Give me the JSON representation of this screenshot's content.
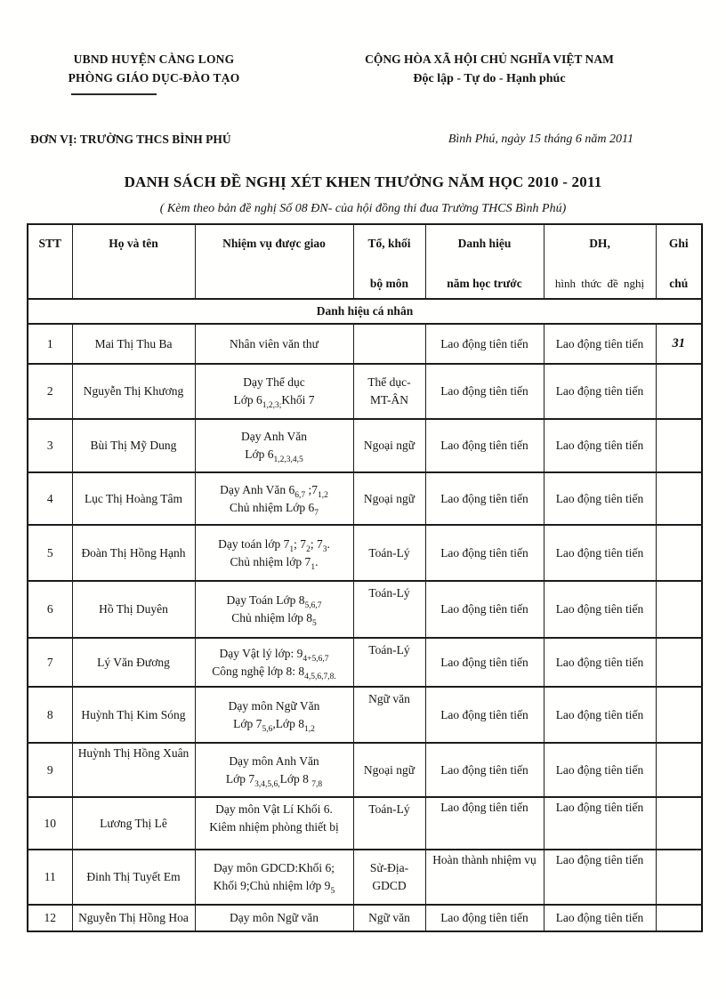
{
  "letterhead": {
    "org_line1": "UBND HUYỆN CÀNG LONG",
    "org_line2": "PHÒNG GIÁO DỤC-ĐÀO TẠO",
    "national_line1": "CỘNG HÒA XÃ HỘI CHỦ NGHĨA VIỆT NAM",
    "national_line2": "Độc lập - Tự do - Hạnh phúc",
    "unit_line": "ĐƠN VỊ: TRƯỜNG THCS BÌNH PHÚ",
    "date_line": "Bình Phú,  ngày  15 tháng  6  năm 2011"
  },
  "title": "DANH  SÁCH ĐỀ NGHỊ XÉT KHEN THƯỞNG NĂM HỌC 2010 - 2011",
  "subtitle": "( Kèm theo bản đề nghị Số  08 ĐN-  của hội đồng thi đua  Trường THCS Bình Phú)",
  "table": {
    "columns": [
      {
        "lines": [
          "STT"
        ]
      },
      {
        "lines": [
          "Họ và tên"
        ]
      },
      {
        "lines": [
          "Nhiệm vụ được giao"
        ]
      },
      {
        "lines": [
          "Tổ, khối",
          "bộ môn"
        ]
      },
      {
        "lines": [
          "Danh hiệu",
          "năm học trước"
        ]
      },
      {
        "lines": [
          "DH,",
          "hình thức  đề nghị"
        ]
      },
      {
        "lines": [
          "Ghi",
          "chú"
        ]
      }
    ],
    "section_row_label": "Danh hiệu cá nhân",
    "rows": [
      {
        "stt": "1",
        "name": "Mai Thị Thu Ba",
        "duty": [
          [
            {
              "t": "Nhân viên văn thư"
            }
          ]
        ],
        "group": [],
        "prev": "Lao động tiên tiến",
        "prop": "Lao động tiên tiến",
        "note": "31"
      },
      {
        "stt": "2",
        "name": "Nguyễn Thị Khương",
        "duty": [
          [
            {
              "t": "Dạy Thể dục"
            }
          ],
          [
            {
              "t": "Lớp 6"
            },
            {
              "t": "1,2,3;",
              "sub": true
            },
            {
              "t": "Khối 7"
            }
          ]
        ],
        "group": [
          "Thể dục-",
          "MT-ÂN"
        ],
        "prev": "Lao động tiên tiến",
        "prop": "Lao động tiên tiến",
        "note": ""
      },
      {
        "stt": "3",
        "name": "Bùi Thị Mỹ Dung",
        "duty": [
          [
            {
              "t": "Dạy Anh Văn"
            }
          ],
          [
            {
              "t": "Lớp 6"
            },
            {
              "t": "1,2,3,4,5",
              "sub": true
            }
          ]
        ],
        "group": [
          "Ngoại ngữ"
        ],
        "prev": "Lao động tiên tiến",
        "prop": "Lao động tiên tiến",
        "note": ""
      },
      {
        "stt": "4",
        "name": "Lục Thị Hoàng Tâm",
        "duty": [
          [
            {
              "t": "Dạy Anh Văn  6"
            },
            {
              "t": "6,7",
              "sub": true
            },
            {
              "t": " ;7"
            },
            {
              "t": "1,2",
              "sub": true
            }
          ],
          [
            {
              "t": "Chủ nhiệm Lớp 6"
            },
            {
              "t": "7",
              "sub": true
            }
          ]
        ],
        "group": [
          "Ngoại ngữ"
        ],
        "prev": "Lao động tiên tiến",
        "prop": "Lao động tiên tiến",
        "note": ""
      },
      {
        "stt": "5",
        "name": "Đoàn Thị Hồng Hạnh",
        "duty": [
          [
            {
              "t": "Dạy toán lớp 7"
            },
            {
              "t": "1",
              "sub": true
            },
            {
              "t": "; 7"
            },
            {
              "t": "2",
              "sub": true
            },
            {
              "t": "; 7"
            },
            {
              "t": "3",
              "sub": true
            },
            {
              "t": "."
            }
          ],
          [
            {
              "t": "Chủ nhiệm lớp 7"
            },
            {
              "t": "1",
              "sub": true
            },
            {
              "t": "."
            }
          ]
        ],
        "group": [
          "Toán-Lý"
        ],
        "prev": "Lao động tiên tiến",
        "prop": "Lao động tiên tiến",
        "note": ""
      },
      {
        "stt": "6",
        "name": "Hồ Thị Duyên",
        "duty": [
          [
            {
              "t": "Dạy Toán  Lớp 8"
            },
            {
              "t": "5,6,7",
              "sub": true
            }
          ],
          [
            {
              "t": "Chủ nhiệm lớp 8"
            },
            {
              "t": "5",
              "sub": true
            }
          ]
        ],
        "group": [
          "Toán-Lý"
        ],
        "prev": "Lao động tiên tiến",
        "prop": "Lao động tiên tiến",
        "note": ""
      },
      {
        "stt": "7",
        "name": "Lý Văn Đương",
        "duty": [
          [
            {
              "t": "Dạy Vật lý lớp: 9"
            },
            {
              "t": "4+5,6,7",
              "sub": true
            }
          ],
          [
            {
              "t": "Công nghệ lớp 8: 8"
            },
            {
              "t": "4,5,6,7,8.",
              "sub": true
            }
          ]
        ],
        "group": [
          "Toán-Lý"
        ],
        "prev": "Lao động tiên tiến",
        "prop": "Lao động tiên tiến",
        "note": ""
      },
      {
        "stt": "8",
        "name": "Huỳnh Thị Kim Sóng",
        "duty": [
          [
            {
              "t": "Dạy môn Ngữ Văn"
            }
          ],
          [
            {
              "t": "Lớp 7"
            },
            {
              "t": "5,6",
              "sub": true
            },
            {
              "t": ",Lớp 8"
            },
            {
              "t": "1,2",
              "sub": true
            }
          ]
        ],
        "group": [
          "Ngữ văn"
        ],
        "prev": "Lao động tiên tiến",
        "prop": "Lao động tiên tiến",
        "note": ""
      },
      {
        "stt": "9",
        "name": "Huỳnh Thị Hồng Xuân",
        "duty": [
          [
            {
              "t": "Dạy môn Anh Văn"
            }
          ],
          [
            {
              "t": "Lớp 7"
            },
            {
              "t": "3,4,5,6,",
              "sub": true
            },
            {
              "t": "Lớp 8 "
            },
            {
              "t": "7,8",
              "sub": true
            }
          ]
        ],
        "group": [
          "Ngoại ngữ"
        ],
        "prev": "Lao động tiên tiến",
        "prop": "Lao động tiên tiến",
        "note": ""
      },
      {
        "stt": "10",
        "name": "Lương Thị Lê",
        "duty": [
          [
            {
              "t": "Dạy môn Vật Lí Khối 6."
            }
          ],
          [
            {
              "t": "Kiêm nhiệm phòng thiết bị"
            }
          ]
        ],
        "group": [
          "Toán-Lý"
        ],
        "prev": "Lao động tiên tiến",
        "prop": "Lao động tiên tiến",
        "note": ""
      },
      {
        "stt": "11",
        "name": "Đinh Thị Tuyết Em",
        "duty": [
          [
            {
              "t": "Dạy môn GDCD:Khối 6;"
            }
          ],
          [
            {
              "t": "Khối 9;Chủ nhiệm lớp 9"
            },
            {
              "t": "5",
              "sub": true
            }
          ]
        ],
        "group": [
          "Sử-Địa-",
          "GDCD"
        ],
        "prev": "Hoàn thành nhiệm vụ",
        "prop": "Lao động tiên tiến",
        "note": ""
      },
      {
        "stt": "12",
        "name": "Nguyễn Thị Hồng Hoa",
        "duty": [
          [
            {
              "t": "Dạy môn Ngữ văn"
            }
          ]
        ],
        "group": [
          "Ngữ văn"
        ],
        "prev": "Lao động tiên tiến",
        "prop": "Lao động tiên tiến",
        "note": ""
      }
    ]
  }
}
